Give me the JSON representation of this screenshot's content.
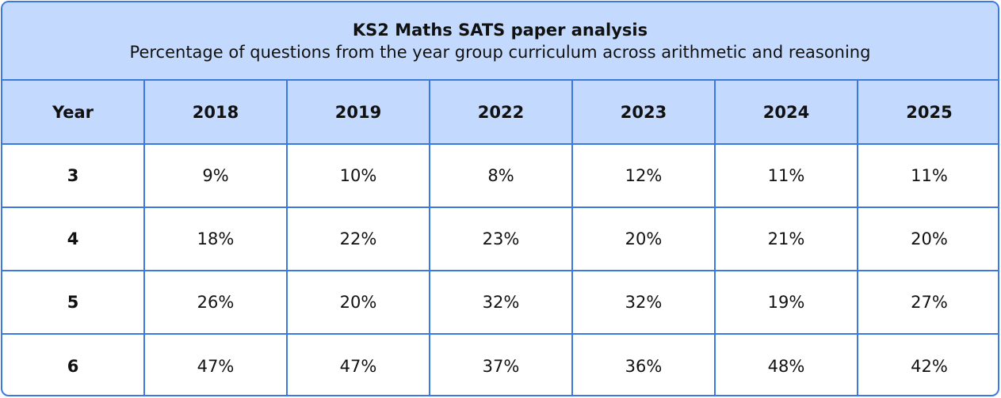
{
  "table": {
    "title": "KS2 Maths SATS paper analysis",
    "subtitle": "Percentage of questions from the year group curriculum across arithmetic and reasoning",
    "header": [
      "Year",
      "2018",
      "2019",
      "2022",
      "2023",
      "2024",
      "2025"
    ],
    "rows": [
      [
        "3",
        "9%",
        "10%",
        "8%",
        "12%",
        "11%",
        "11%"
      ],
      [
        "4",
        "18%",
        "22%",
        "23%",
        "20%",
        "21%",
        "20%"
      ],
      [
        "5",
        "26%",
        "20%",
        "32%",
        "32%",
        "19%",
        "27%"
      ],
      [
        "6",
        "47%",
        "47%",
        "37%",
        "36%",
        "48%",
        "42%"
      ]
    ]
  },
  "colors": {
    "border": "#3b78e0",
    "header_fill": "#c3d9fd",
    "body_fill": "#ffffff"
  }
}
